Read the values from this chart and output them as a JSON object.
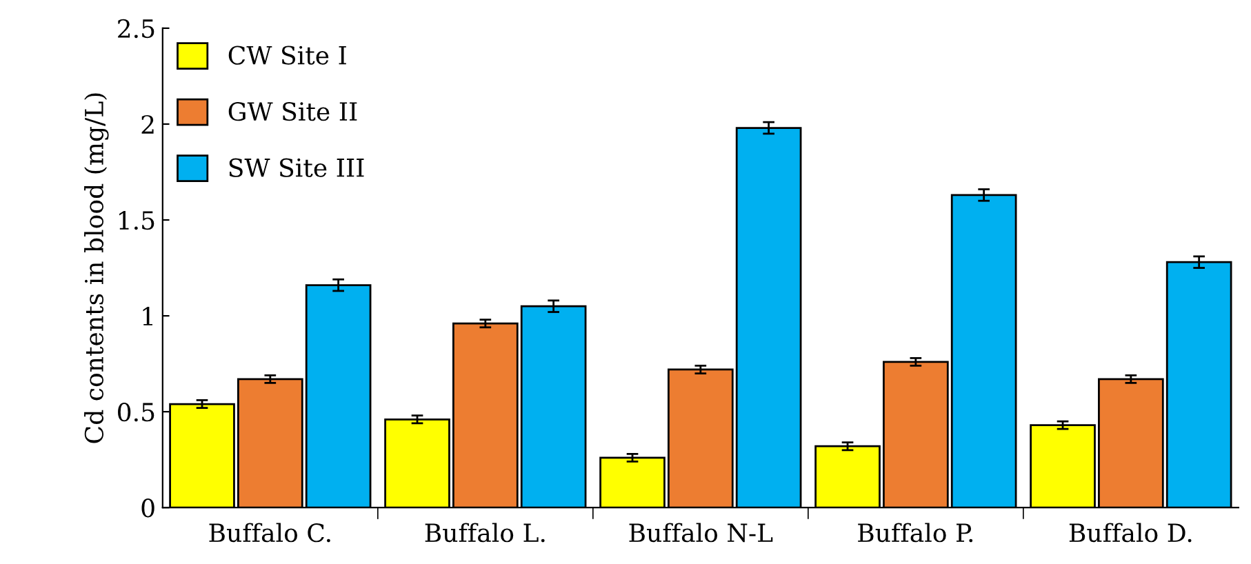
{
  "chart_data": {
    "type": "bar",
    "ylabel": "Cd contents in blood (mg/L)",
    "categories": [
      "Buffalo C.",
      "Buffalo L.",
      "Buffalo N-L",
      "Buffalo P.",
      "Buffalo D."
    ],
    "series": [
      {
        "name": "CW Site I",
        "color": "#ffff00",
        "values": [
          0.54,
          0.46,
          0.26,
          0.32,
          0.43
        ],
        "errors": [
          0.02,
          0.02,
          0.02,
          0.02,
          0.02
        ]
      },
      {
        "name": "GW Site II",
        "color": "#ed7d31",
        "values": [
          0.67,
          0.96,
          0.72,
          0.76,
          0.67
        ],
        "errors": [
          0.02,
          0.02,
          0.02,
          0.02,
          0.02
        ]
      },
      {
        "name": "SW Site III",
        "color": "#00b0f0",
        "values": [
          1.16,
          1.05,
          1.98,
          1.63,
          1.28
        ],
        "errors": [
          0.03,
          0.03,
          0.03,
          0.03,
          0.03
        ]
      }
    ],
    "ylim": [
      0,
      2.5
    ],
    "yticks": [
      0,
      0.5,
      1,
      1.5,
      2,
      2.5
    ],
    "grid": false,
    "legend": "top left"
  }
}
